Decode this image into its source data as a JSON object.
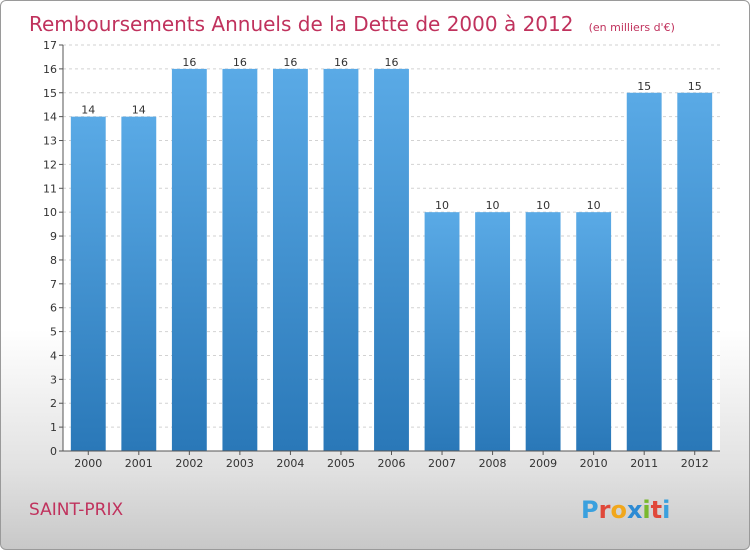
{
  "chart_data": {
    "type": "bar",
    "title": "Remboursements Annuels de la Dette de 2000 à 2012",
    "subtitle": "(en milliers d'€)",
    "categories": [
      "2000",
      "2001",
      "2002",
      "2003",
      "2004",
      "2005",
      "2006",
      "2007",
      "2008",
      "2009",
      "2010",
      "2011",
      "2012"
    ],
    "values": [
      14,
      14,
      16,
      16,
      16,
      16,
      16,
      10,
      10,
      10,
      10,
      15,
      15
    ],
    "ylim": [
      0,
      17
    ],
    "yticks": [
      0,
      1,
      2,
      3,
      4,
      5,
      6,
      7,
      8,
      9,
      10,
      11,
      12,
      13,
      14,
      15,
      16,
      17
    ],
    "grid": true,
    "bar_color": "#5aaae6",
    "bar_color_dark": "#2a78b8"
  },
  "footer": {
    "commune": "SAINT-PRIX",
    "logo_letters": [
      {
        "ch": "P",
        "color": "#3aa0de"
      },
      {
        "ch": "r",
        "color": "#e0483a"
      },
      {
        "ch": "o",
        "color": "#f1a71c"
      },
      {
        "ch": "x",
        "color": "#2d8bd4"
      },
      {
        "ch": "i",
        "color": "#7ab82d"
      },
      {
        "ch": "t",
        "color": "#e0483a"
      },
      {
        "ch": "i",
        "color": "#3aa0de"
      }
    ]
  }
}
